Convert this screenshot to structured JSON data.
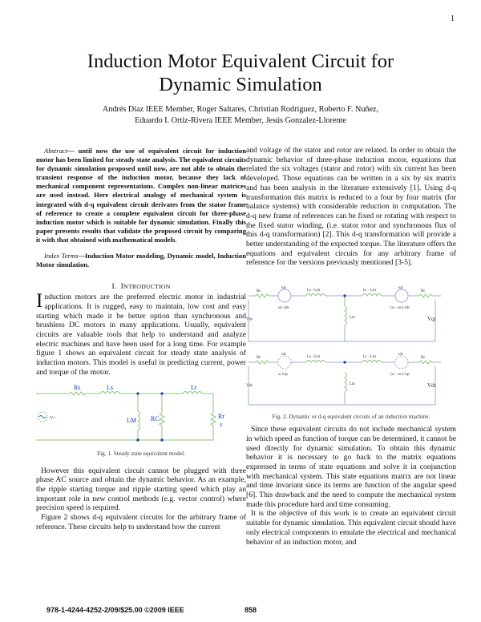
{
  "page_number": "1",
  "title_line1": "Induction Motor Equivalent Circuit for",
  "title_line2": "Dynamic Simulation",
  "authors_line1": "Andrés Diaz IEEE Member, Roger Saltares, Christian Rodriguez,  Roberto F.  Nuñez,",
  "authors_line2": "Eduardo I. Ortiz-Rivera IEEE Member, Jesús Gonzalez-Llorente",
  "abstract": {
    "label": "Abstract",
    "text": "— until now the use of equivalent circuit for induction motor has been limited for steady state analysis. The equivalent circuits for dynamic simulation proposed until now, are not able to obtain the transient response of the induction motor, because they lack of mechanical component representations.  Complex non-linear matrices are used instead.  Here electrical analogy of mechanical system is integrated with d-q equivalent circuit derivates from the stator frame of reference to create a complete equivalent circuit for three-phase induction motor which is suitable for dynamic simulation.  Finally this paper presents results that validate the proposed circuit by comparing it with that obtained with mathematical models."
  },
  "index_terms": {
    "label": "Index Terms",
    "text": "—Induction Motor modeling, Dynamic model, Induction Motor simulation."
  },
  "section1": {
    "number": "I.",
    "title_first": "I",
    "title_rest": "NTRODUCTION"
  },
  "intro": {
    "dropcap": "I",
    "p1": "nduction motors are the preferred electric motor in industrial applications. It is rugged, easy to maintain, low cost and easy starting which made it be better option than synchronous and brushless DC motors in many applications. Usually, equivalent circuits are valuable tools that help to understand and analyze electric machines and have been used for a long time. For example figure 1 shows an equivalent circuit for steady state analysis of induction motors. This model is useful in predicting current, power and torque of the motor.",
    "p2": "However this equivalent circuit cannot be plugged with three phase AC source and obtain the dynamic behavior. As an example, the ripple starting torque and ripple starting speed which play an important role in new control methods (e.g. vector control) where precision speed is required.",
    "p3": "Figure 2 shows d-q equivalent circuits for the arbitrary frame of reference. These circuits help to understand how the current"
  },
  "fig1": {
    "caption": "Fig. 1. Steady state equivalent model.",
    "labels": {
      "rs": "Rs",
      "ls": "Ls",
      "lr": "Lr",
      "lm": "LM",
      "rc": "RC",
      "rr": "Rr",
      "s": "s",
      "v": "V~"
    },
    "wire_color": "#8cc47a",
    "node_color": "#1030d0"
  },
  "right": {
    "p1": "and voltage of the stator and rotor are related. In order to obtain the dynamic behavior of three-phase induction motor, equations that related the six voltages (stator and rotor) with six current has been developed. Those equations can be written in a six by six matrix and has been analysis in the literature extensively [1].   Using d-q transformation this matrix is reduced to a four by four matrix (for balance systems) with considerable reduction in computation.  The d-q new frame of references can be fixed or rotating with respect to the fixed stator winding, (i.e. stator rotor and synchronous flux of this d-q transformation) [2]. This d-q transformation will provide a better understanding of the expected torque. The literature offers the equations and equivalent circuits for any arbitrary frame of reference for the versions previously mentioned [3-5].",
    "p2": "Since these equivalent circuits do not include mechanical system in which speed as function of torque can be determined, it cannot be used directly for dynamic simulation. To obtain this dynamic behavior it is necessary to go back to the matrix equations expressed in terms of state equations and solve it in conjunction with mechanical system. This state equations matrix are not linear and time invariant since its terms are function of the angular speed [6].  This drawback and the need to compute the mechanical system made this procedure hard and time consuming.",
    "p3": "It is the objective of this work is to create an equivalent circuit suitable for dynamic simulation. This equivalent circuit should have only electrical components to emulate the electrical and mechanical behavior of an induction motor, and"
  },
  "fig2": {
    "caption": "Fig. 2. Dynamic or d-q equivalent circuits of an induction machine.",
    "q": {
      "rs": "Rs",
      "is": "iqs",
      "src1": "ωr·λds",
      "ls": "Ls - Lm",
      "lr": "Lr - Lm",
      "ir": "iqr",
      "src2": "(ω - ωr)·λdr",
      "rr": "Rr",
      "lm": "Lm",
      "vs": "Vqs",
      "vr": "Vqr"
    },
    "d": {
      "rs": "Rs",
      "is": "ids",
      "src1": "ω·λqs",
      "ls": "Ls - Lm",
      "lr": "Lr - Lm",
      "ir": "idr",
      "src2": "(ω - ωr)·λqr",
      "rr": "Rr",
      "lm": "Lm",
      "vs": "Vds",
      "vr": "Vdr"
    },
    "wire_color": "#9fa8e0"
  },
  "footer": {
    "isbn": "978-1-4244-4252-2/09/$25.00 ©2009 IEEE",
    "page": "858"
  }
}
